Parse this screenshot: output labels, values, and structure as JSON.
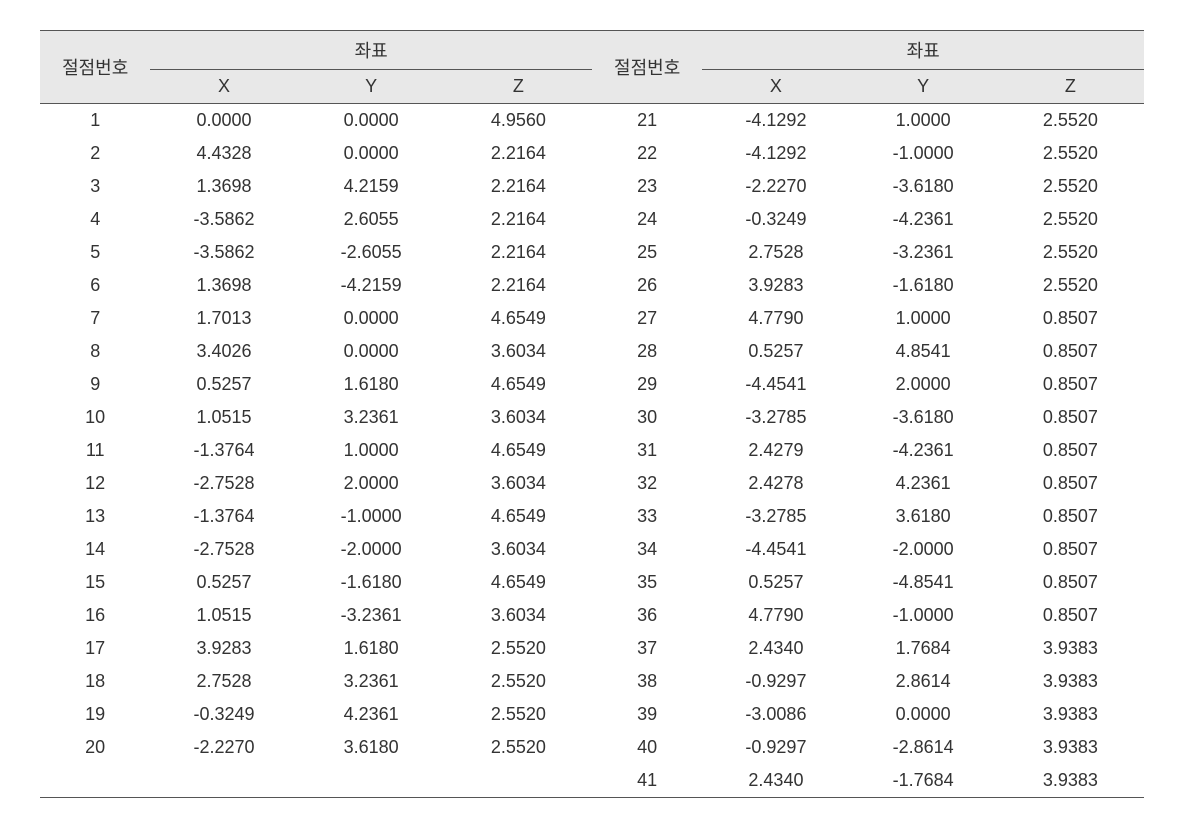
{
  "headers": {
    "node_label": "절점번호",
    "coord_label": "좌표",
    "x": "X",
    "y": "Y",
    "z": "Z"
  },
  "table": {
    "columns": [
      "node_left",
      "x_left",
      "y_left",
      "z_left",
      "node_right",
      "x_right",
      "y_right",
      "z_right"
    ],
    "rows": [
      [
        "1",
        "0.0000",
        "0.0000",
        "4.9560",
        "21",
        "-4.1292",
        "1.0000",
        "2.5520"
      ],
      [
        "2",
        "4.4328",
        "0.0000",
        "2.2164",
        "22",
        "-4.1292",
        "-1.0000",
        "2.5520"
      ],
      [
        "3",
        "1.3698",
        "4.2159",
        "2.2164",
        "23",
        "-2.2270",
        "-3.6180",
        "2.5520"
      ],
      [
        "4",
        "-3.5862",
        "2.6055",
        "2.2164",
        "24",
        "-0.3249",
        "-4.2361",
        "2.5520"
      ],
      [
        "5",
        "-3.5862",
        "-2.6055",
        "2.2164",
        "25",
        "2.7528",
        "-3.2361",
        "2.5520"
      ],
      [
        "6",
        "1.3698",
        "-4.2159",
        "2.2164",
        "26",
        "3.9283",
        "-1.6180",
        "2.5520"
      ],
      [
        "7",
        "1.7013",
        "0.0000",
        "4.6549",
        "27",
        "4.7790",
        "1.0000",
        "0.8507"
      ],
      [
        "8",
        "3.4026",
        "0.0000",
        "3.6034",
        "28",
        "0.5257",
        "4.8541",
        "0.8507"
      ],
      [
        "9",
        "0.5257",
        "1.6180",
        "4.6549",
        "29",
        "-4.4541",
        "2.0000",
        "0.8507"
      ],
      [
        "10",
        "1.0515",
        "3.2361",
        "3.6034",
        "30",
        "-3.2785",
        "-3.6180",
        "0.8507"
      ],
      [
        "11",
        "-1.3764",
        "1.0000",
        "4.6549",
        "31",
        "2.4279",
        "-4.2361",
        "0.8507"
      ],
      [
        "12",
        "-2.7528",
        "2.0000",
        "3.6034",
        "32",
        "2.4278",
        "4.2361",
        "0.8507"
      ],
      [
        "13",
        "-1.3764",
        "-1.0000",
        "4.6549",
        "33",
        "-3.2785",
        "3.6180",
        "0.8507"
      ],
      [
        "14",
        "-2.7528",
        "-2.0000",
        "3.6034",
        "34",
        "-4.4541",
        "-2.0000",
        "0.8507"
      ],
      [
        "15",
        "0.5257",
        "-1.6180",
        "4.6549",
        "35",
        "0.5257",
        "-4.8541",
        "0.8507"
      ],
      [
        "16",
        "1.0515",
        "-3.2361",
        "3.6034",
        "36",
        "4.7790",
        "-1.0000",
        "0.8507"
      ],
      [
        "17",
        "3.9283",
        "1.6180",
        "2.5520",
        "37",
        "2.4340",
        "1.7684",
        "3.9383"
      ],
      [
        "18",
        "2.7528",
        "3.2361",
        "2.5520",
        "38",
        "-0.9297",
        "2.8614",
        "3.9383"
      ],
      [
        "19",
        "-0.3249",
        "4.2361",
        "2.5520",
        "39",
        "-3.0086",
        "0.0000",
        "3.9383"
      ],
      [
        "20",
        "-2.2270",
        "3.6180",
        "2.5520",
        "40",
        "-0.9297",
        "-2.8614",
        "3.9383"
      ],
      [
        "",
        "",
        "",
        "",
        "41",
        "2.4340",
        "-1.7684",
        "3.9383"
      ]
    ]
  }
}
